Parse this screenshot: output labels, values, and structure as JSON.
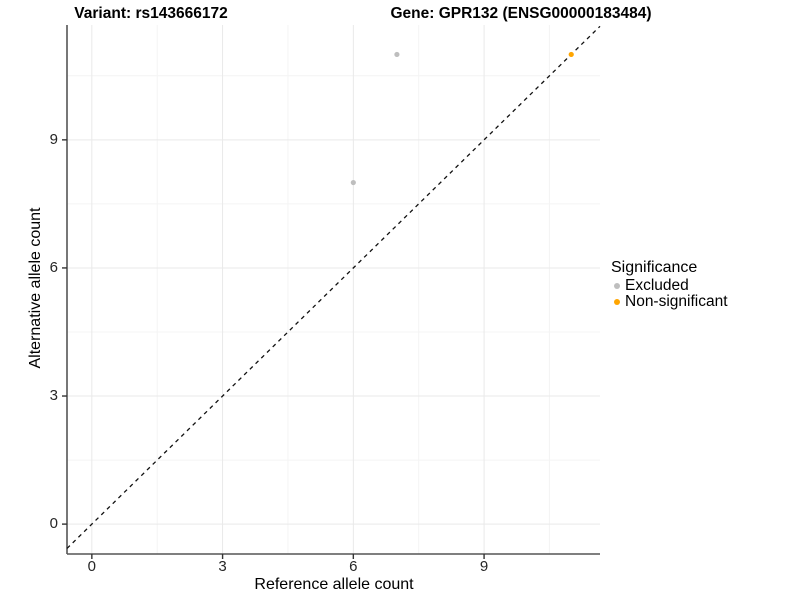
{
  "titles": {
    "variant": "Variant: rs143666172",
    "gene": "Gene: GPR132 (ENSG00000183484)"
  },
  "chart_data": {
    "type": "scatter",
    "xlabel": "Reference allele count",
    "ylabel": "Alternative allele count",
    "xlim": [
      -0.57,
      11.66
    ],
    "ylim": [
      -0.7,
      11.69
    ],
    "xticks": [
      0,
      3,
      6,
      9
    ],
    "yticks": [
      0,
      3,
      6,
      9
    ],
    "xticks_minor": [
      1.5,
      4.5,
      7.5,
      10.5
    ],
    "yticks_minor": [
      1.5,
      4.5,
      7.5,
      10.5
    ],
    "grid": true,
    "series": [
      {
        "name": "Excluded",
        "color": "#BEBEBE",
        "points": [
          [
            7,
            11
          ],
          [
            6,
            8
          ]
        ]
      },
      {
        "name": "Non-significant",
        "color": "#FFA500",
        "points": [
          [
            11,
            11
          ]
        ]
      }
    ],
    "identity_line": {
      "style": "dashed",
      "color": "#111111",
      "from": -0.57,
      "to": 11.66
    },
    "legend": {
      "title": "Significance",
      "position": "right",
      "entries": [
        {
          "label": "Excluded",
          "color": "#BEBEBE"
        },
        {
          "label": "Non-significant",
          "color": "#FFA500"
        }
      ]
    },
    "style": {
      "grid_major_color": "#E9E9E9",
      "grid_minor_color": "#F4F4F4",
      "axis_line_color": "#555555",
      "tick_color": "#333333",
      "point_radius": 2.6
    }
  }
}
